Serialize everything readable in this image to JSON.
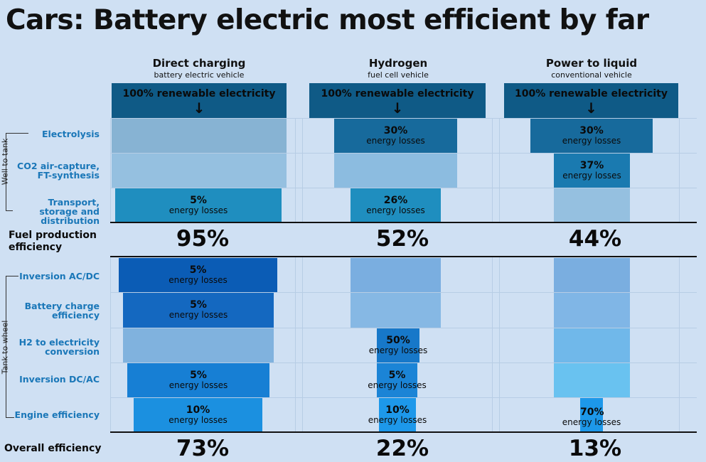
{
  "title": "Cars: Battery electric most efficient by far",
  "columns": [
    {
      "title": "Direct charging",
      "subtitle": "battery electric vehicle",
      "source": "100% renewable electricity",
      "fuel_efficiency": "95%",
      "overall": "73%"
    },
    {
      "title": "Hydrogen",
      "subtitle": "fuel cell vehicle",
      "source": "100% renewable electricity",
      "fuel_efficiency": "52%",
      "overall": "22%"
    },
    {
      "title": "Power to liquid",
      "subtitle": "conventional vehicle",
      "source": "100% renewable electricity",
      "fuel_efficiency": "44%",
      "overall": "13%"
    }
  ],
  "source_arrow": "↓",
  "rows": {
    "electrolysis": "Electrolysis",
    "co2_capture": "CO2 air-capture, FT-synthesis",
    "transport": "Transport, storage and distribution",
    "fuel_production": "Fuel production efficiency",
    "inversion_acdc": "Inversion AC/DC",
    "battery_charge": "Battery charge efficiency",
    "h2_conversion": "H2 to electricity conversion",
    "inversion_dcac": "Inversion DC/AC",
    "engine": "Engine efficiency",
    "overall": "Overall efficiency"
  },
  "side_labels": {
    "well_to_tank": "Well to tank",
    "tank_to_wheel": "Tank to wheel"
  },
  "energy_losses_label": "energy losses",
  "losses": {
    "bev_transport": "5%",
    "h2_electrolysis": "30%",
    "h2_transport": "26%",
    "ptl_electrolysis": "30%",
    "ptl_co2": "37%",
    "bev_inv_acdc": "5%",
    "bev_battery": "5%",
    "bev_inv_dcac": "5%",
    "bev_engine": "10%",
    "h2_conversion": "50%",
    "h2_inv_dcac": "5%",
    "h2_engine": "10%",
    "ptl_engine": "70%"
  },
  "colors": {
    "background": "#cfe0f3",
    "source": "#0f5a86",
    "dark_loss": "#1565a0",
    "inversion_bev": "#0e5eb8",
    "engine_bright": "#1b90e0"
  }
}
